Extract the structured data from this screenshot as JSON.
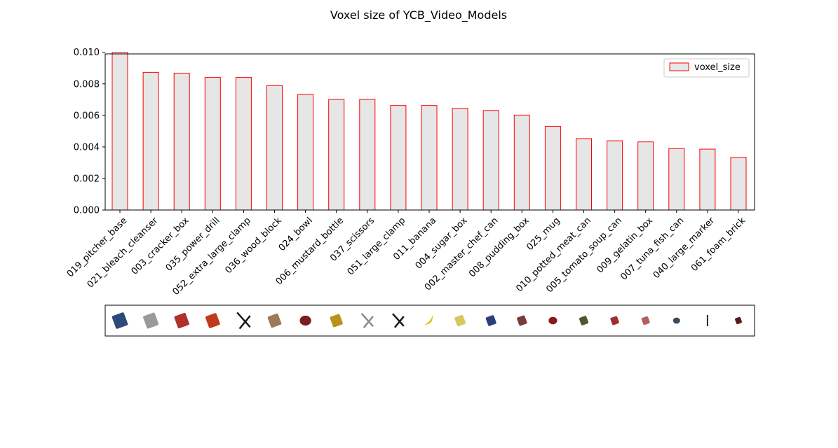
{
  "chart_data": {
    "type": "bar",
    "title": "Voxel size of YCB_Video_Models",
    "xlabel": "",
    "ylabel": "",
    "ylim": [
      0,
      0.0099
    ],
    "yticks": [
      "0.000",
      "0.002",
      "0.004",
      "0.006",
      "0.008",
      "0.010"
    ],
    "grid": false,
    "legend_position": "top-right",
    "categories": [
      "019_pitcher_base",
      "021_bleach_cleanser",
      "003_cracker_box",
      "035_power_drill",
      "052_extra_large_clamp",
      "036_wood_block",
      "024_bowl",
      "006_mustard_bottle",
      "037_scissors",
      "051_large_clamp",
      "011_banana",
      "004_sugar_box",
      "002_master_chef_can",
      "008_pudding_box",
      "025_mug",
      "010_potted_meat_can",
      "005_tomato_soup_can",
      "009_gelatin_box",
      "007_tuna_fish_can",
      "040_large_marker",
      "061_foam_brick"
    ],
    "series": [
      {
        "name": "voxel_size",
        "values": [
          0.01,
          0.00873,
          0.00868,
          0.00841,
          0.00841,
          0.00789,
          0.00733,
          0.00701,
          0.00701,
          0.00663,
          0.00663,
          0.00645,
          0.00631,
          0.00602,
          0.00531,
          0.00453,
          0.00439,
          0.00432,
          0.0039,
          0.00386,
          0.00334
        ]
      }
    ],
    "colors": {
      "bar_fill": "#e6e6e6",
      "bar_edge": "#ff0000"
    },
    "thumbnails": [
      {
        "icon": "pitcher-base-icon",
        "color": "#2f4a7a"
      },
      {
        "icon": "bleach-cleanser-icon",
        "color": "#9a9a9a"
      },
      {
        "icon": "cracker-box-icon",
        "color": "#b0302a"
      },
      {
        "icon": "power-drill-icon",
        "color": "#c0391b"
      },
      {
        "icon": "extra-large-clamp-icon",
        "color": "#1a1a1a"
      },
      {
        "icon": "wood-block-icon",
        "color": "#9b7a55"
      },
      {
        "icon": "bowl-icon",
        "color": "#7a1f1f"
      },
      {
        "icon": "mustard-bottle-icon",
        "color": "#b8921c"
      },
      {
        "icon": "scissors-icon",
        "color": "#8a8a8a"
      },
      {
        "icon": "large-clamp-icon",
        "color": "#1a1a1a"
      },
      {
        "icon": "banana-icon",
        "color": "#e0c020"
      },
      {
        "icon": "sugar-box-icon",
        "color": "#d8c860"
      },
      {
        "icon": "master-chef-can-icon",
        "color": "#2c3f78"
      },
      {
        "icon": "pudding-box-icon",
        "color": "#7a3a3a"
      },
      {
        "icon": "mug-icon",
        "color": "#8a1a1a"
      },
      {
        "icon": "potted-meat-can-icon",
        "color": "#4a5a2a"
      },
      {
        "icon": "tomato-soup-can-icon",
        "color": "#a03030"
      },
      {
        "icon": "gelatin-box-icon",
        "color": "#b06060"
      },
      {
        "icon": "tuna-fish-can-icon",
        "color": "#3a4a5a"
      },
      {
        "icon": "large-marker-icon",
        "color": "#2a2a2a"
      },
      {
        "icon": "foam-brick-icon",
        "color": "#5a1a1a"
      }
    ]
  }
}
